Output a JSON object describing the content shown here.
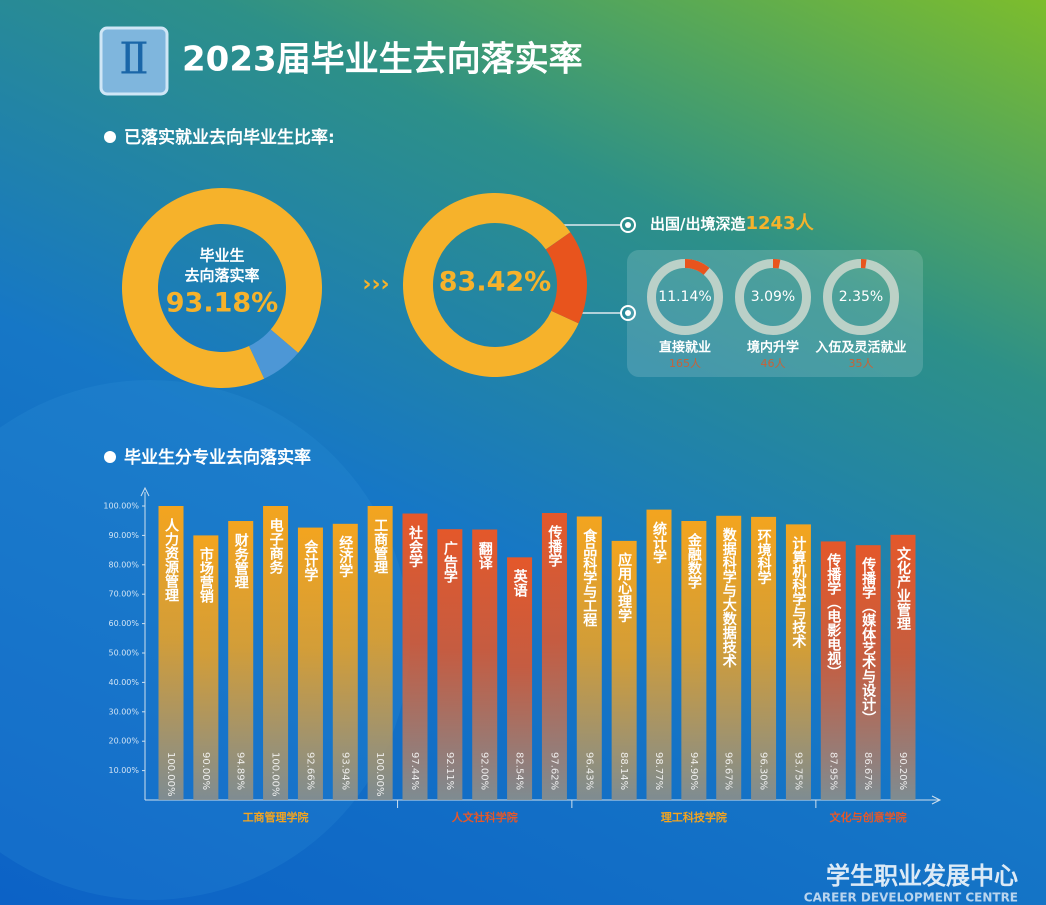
{
  "header": {
    "badge": "Ⅱ",
    "title": "2023届毕业生去向落实率"
  },
  "sections": [
    "已落实就业去向毕业生比率:",
    "毕业生分专业去向落实率"
  ],
  "chart_data": [
    {
      "type": "pie",
      "title": "毕业生",
      "subtitle": "去向落实率",
      "values": [
        93.18,
        6.82
      ],
      "value_labels": [
        "93.18%",
        null
      ],
      "colors": [
        "#f6b22b",
        "#4d97d6"
      ]
    },
    {
      "type": "pie",
      "values": [
        83.42,
        16.58
      ],
      "value_labels": [
        "83.42%",
        null
      ],
      "colors": [
        "#f6b22b",
        "#e8541d"
      ]
    },
    {
      "type": "gauge",
      "title": "出国/出境深造",
      "annotation": "1243人",
      "ylim": [
        0,
        100
      ],
      "color": "#e8541d",
      "categories": [
        "直接就业",
        "境内升学",
        "入伍及灵活就业"
      ],
      "values": [
        11.14,
        3.09,
        2.35
      ],
      "value_labels": [
        "11.14%",
        "3.09%",
        "2.35%"
      ],
      "counts": [
        "165人",
        "46人",
        "35人"
      ]
    },
    {
      "type": "bar",
      "ylim": [
        0,
        100
      ],
      "yticks": [
        {
          "value": 10,
          "label": "10.00%"
        },
        {
          "value": 20,
          "label": "20.00%"
        },
        {
          "value": 30,
          "label": "30.00%"
        },
        {
          "value": 40,
          "label": "40.00%"
        },
        {
          "value": 50,
          "label": "50.00%"
        },
        {
          "value": 60,
          "label": "60.00%"
        },
        {
          "value": 70,
          "label": "70.00%"
        },
        {
          "value": 80,
          "label": "80.00%"
        },
        {
          "value": 90,
          "label": "90.00%"
        },
        {
          "value": 100,
          "label": "100.00%"
        }
      ],
      "groups": [
        {
          "name": "工商管理学院",
          "color": "#f3a41f",
          "categories": [
            "人力资源管理",
            "市场营销",
            "财务管理",
            "电子商务",
            "会计学",
            "经济学",
            "工商管理"
          ],
          "values": [
            100,
            90,
            94.89,
            100,
            92.66,
            93.94,
            100
          ],
          "value_labels": [
            "100.00%",
            "90.00%",
            "94.89%",
            "100.00%",
            "92.66%",
            "93.94%",
            "100.00%"
          ]
        },
        {
          "name": "人文社科学院",
          "color": "#e4582a",
          "categories": [
            "社会学",
            "广告学",
            "翻译",
            "英语",
            "传播学"
          ],
          "values": [
            97.44,
            92.11,
            92,
            82.54,
            97.62
          ],
          "value_labels": [
            "97.44%",
            "92.11%",
            "92.00%",
            "82.54%",
            "97.62%"
          ]
        },
        {
          "name": "理工科技学院",
          "color": "#f3a41f",
          "categories": [
            "食品科学与工程",
            "应用心理学",
            "统计学",
            "金融数学",
            "数据科学与大数据技术",
            "环境科学",
            "计算机科学与技术"
          ],
          "values": [
            96.43,
            88.14,
            98.77,
            94.9,
            96.67,
            96.3,
            93.75
          ],
          "value_labels": [
            "96.43%",
            "88.14%",
            "98.77%",
            "94.90%",
            "96.67%",
            "96.30%",
            "93.75%"
          ]
        },
        {
          "name": "文化与创意学院",
          "color": "#e4582a",
          "categories": [
            "传播学（电影电视）",
            "传播学（媒体艺术与设计）",
            "文化产业管理"
          ],
          "values": [
            87.95,
            86.67,
            90.2
          ],
          "value_labels": [
            "87.95%",
            "86.67%",
            "90.20%"
          ]
        }
      ]
    }
  ],
  "footer": {
    "title": "学生职业发展中心",
    "subtitle": "CAREER DEVELOPMENT CENTRE"
  }
}
